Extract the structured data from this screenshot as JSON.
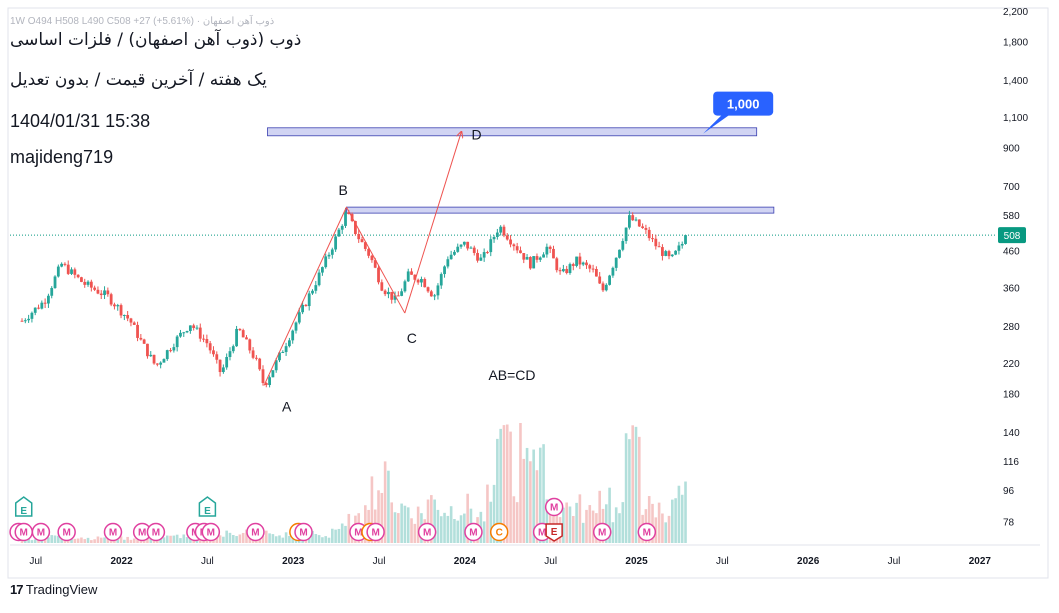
{
  "header": {
    "ohlc_line": "ذوب آهن اصفهان · 1W  O494  H508  L490  C508  +27 (+5.61%)",
    "title_line": "ذوب (ذوب آهن اصفهان) / فلزات اساسی",
    "subtitle_line": "یک هفته / آخرین قیمت / بدون تعدیل",
    "timestamp": "1404/01/31 15:38",
    "author": "majideng719"
  },
  "footer": {
    "brand_logo": "17",
    "brand_name": "TradingView"
  },
  "colors": {
    "up": "#26a69a",
    "down": "#ef5350",
    "vol_up": "#b2dfdb",
    "vol_down": "#f5c6c5",
    "zone_fill": "#d1d4f3",
    "zone_stroke": "#3a3fb0",
    "line": "#ef5350",
    "callout": "#2962ff",
    "last_price_bg": "#089981",
    "event_m": "#e040a0",
    "event_e": "#26a69a",
    "event_c": "#f57c00"
  },
  "chart_data": {
    "type": "candlestick",
    "title": "",
    "scale": "log",
    "y_ticks": [
      78,
      96,
      116,
      140,
      180,
      220,
      280,
      360,
      460,
      580,
      700,
      900,
      1100,
      1400,
      1800,
      2200
    ],
    "y_tick_labels": [
      "78",
      "96",
      "116",
      "140",
      "180",
      "220",
      "280",
      "360",
      "460",
      "580",
      "700",
      "900",
      "1,100",
      "1,400",
      "1,800",
      "2,200"
    ],
    "x_ticks": [
      "Jul",
      "2022",
      "Jul",
      "2023",
      "Jul",
      "2024",
      "Jul",
      "2025",
      "Jul",
      "2026",
      "Jul",
      "2027"
    ],
    "x_tick_years": [
      2021.5,
      2022,
      2022.5,
      2023,
      2023.5,
      2024,
      2024.5,
      2025,
      2025.5,
      2026,
      2026.5,
      2027
    ],
    "last_price": 508,
    "last_price_label": "508",
    "price_path": [
      {
        "t": 2021.42,
        "v": 290
      },
      {
        "t": 2021.55,
        "v": 330
      },
      {
        "t": 2021.65,
        "v": 420
      },
      {
        "t": 2021.78,
        "v": 370
      },
      {
        "t": 2021.92,
        "v": 340
      },
      {
        "t": 2022.05,
        "v": 290
      },
      {
        "t": 2022.12,
        "v": 250
      },
      {
        "t": 2022.2,
        "v": 215
      },
      {
        "t": 2022.3,
        "v": 250
      },
      {
        "t": 2022.4,
        "v": 285
      },
      {
        "t": 2022.5,
        "v": 250
      },
      {
        "t": 2022.58,
        "v": 205
      },
      {
        "t": 2022.68,
        "v": 275
      },
      {
        "t": 2022.78,
        "v": 225
      },
      {
        "t": 2022.83,
        "v": 190
      },
      {
        "t": 2022.92,
        "v": 230
      },
      {
        "t": 2023.05,
        "v": 310
      },
      {
        "t": 2023.15,
        "v": 390
      },
      {
        "t": 2023.25,
        "v": 500
      },
      {
        "t": 2023.31,
        "v": 590
      },
      {
        "t": 2023.37,
        "v": 510
      },
      {
        "t": 2023.45,
        "v": 440
      },
      {
        "t": 2023.52,
        "v": 360
      },
      {
        "t": 2023.6,
        "v": 330
      },
      {
        "t": 2023.67,
        "v": 390
      },
      {
        "t": 2023.75,
        "v": 380
      },
      {
        "t": 2023.82,
        "v": 340
      },
      {
        "t": 2023.9,
        "v": 440
      },
      {
        "t": 2024.0,
        "v": 480
      },
      {
        "t": 2024.1,
        "v": 430
      },
      {
        "t": 2024.2,
        "v": 540
      },
      {
        "t": 2024.3,
        "v": 470
      },
      {
        "t": 2024.38,
        "v": 420
      },
      {
        "t": 2024.48,
        "v": 470
      },
      {
        "t": 2024.56,
        "v": 390
      },
      {
        "t": 2024.65,
        "v": 430
      },
      {
        "t": 2024.75,
        "v": 400
      },
      {
        "t": 2024.8,
        "v": 350
      },
      {
        "t": 2024.88,
        "v": 440
      },
      {
        "t": 2024.96,
        "v": 570
      },
      {
        "t": 2025.05,
        "v": 520
      },
      {
        "t": 2025.12,
        "v": 470
      },
      {
        "t": 2025.2,
        "v": 430
      },
      {
        "t": 2025.3,
        "v": 508
      }
    ],
    "volume_level": [
      0.04,
      0.05,
      0.06,
      0.05,
      0.04,
      0.05,
      0.04,
      0.04,
      0.05,
      0.05,
      0.06,
      0.05,
      0.06,
      0.08,
      0.1,
      0.08,
      0.06,
      0.07,
      0.08,
      0.06,
      0.12,
      0.18,
      0.45,
      0.5,
      0.3,
      0.25,
      0.35,
      0.28,
      0.3,
      0.22,
      0.35,
      0.5,
      0.9,
      0.6,
      0.3,
      0.3,
      0.25,
      0.4,
      0.25,
      0.2,
      0.3,
      0.28,
      0.38
    ],
    "volume_peak_years": [
      2024.2,
      2024.25,
      2024.95,
      2025.0
    ],
    "resistance_zone_AB": {
      "t_start": 2023.31,
      "t_end": 2025.8,
      "v_low": 590,
      "v_high": 610
    },
    "target_zone_D": {
      "t_start": 2022.85,
      "t_end": 2025.7,
      "v_low": 985,
      "v_high": 1025
    },
    "abcd_points": [
      {
        "label": "A",
        "t": 2022.83,
        "v": 190
      },
      {
        "label": "B",
        "t": 2023.31,
        "v": 610
      },
      {
        "label": "C",
        "t": 2023.65,
        "v": 305
      },
      {
        "label": "D",
        "t": 2023.98,
        "v": 1000
      }
    ],
    "ratio_label": "AB=CD",
    "callout": {
      "text": "1,000",
      "t": 2025.4,
      "v": 1000
    },
    "event_markers": [
      {
        "type": "M",
        "t": 2021.4
      },
      {
        "type": "M",
        "t": 2021.43
      },
      {
        "type": "E",
        "t": 2021.43,
        "top": true
      },
      {
        "type": "M",
        "t": 2021.53
      },
      {
        "type": "M",
        "t": 2021.68
      },
      {
        "type": "M",
        "t": 2021.95
      },
      {
        "type": "M",
        "t": 2022.12
      },
      {
        "type": "M",
        "t": 2022.2
      },
      {
        "type": "M",
        "t": 2022.43
      },
      {
        "type": "M",
        "t": 2022.48
      },
      {
        "type": "E",
        "t": 2022.5,
        "top": true
      },
      {
        "type": "M",
        "t": 2022.52
      },
      {
        "type": "M",
        "t": 2022.78
      },
      {
        "type": "C",
        "t": 2023.03
      },
      {
        "type": "M",
        "t": 2023.06
      },
      {
        "type": "M",
        "t": 2023.38
      },
      {
        "type": "C",
        "t": 2023.45
      },
      {
        "type": "M",
        "t": 2023.48
      },
      {
        "type": "M",
        "t": 2023.78
      },
      {
        "type": "M",
        "t": 2024.05
      },
      {
        "type": "C",
        "t": 2024.2
      },
      {
        "type": "M",
        "t": 2024.45
      },
      {
        "type": "E",
        "t": 2024.52,
        "down": true
      },
      {
        "type": "M",
        "t": 2024.52,
        "top": true
      },
      {
        "type": "M",
        "t": 2024.8
      },
      {
        "type": "M",
        "t": 2025.06
      }
    ]
  }
}
